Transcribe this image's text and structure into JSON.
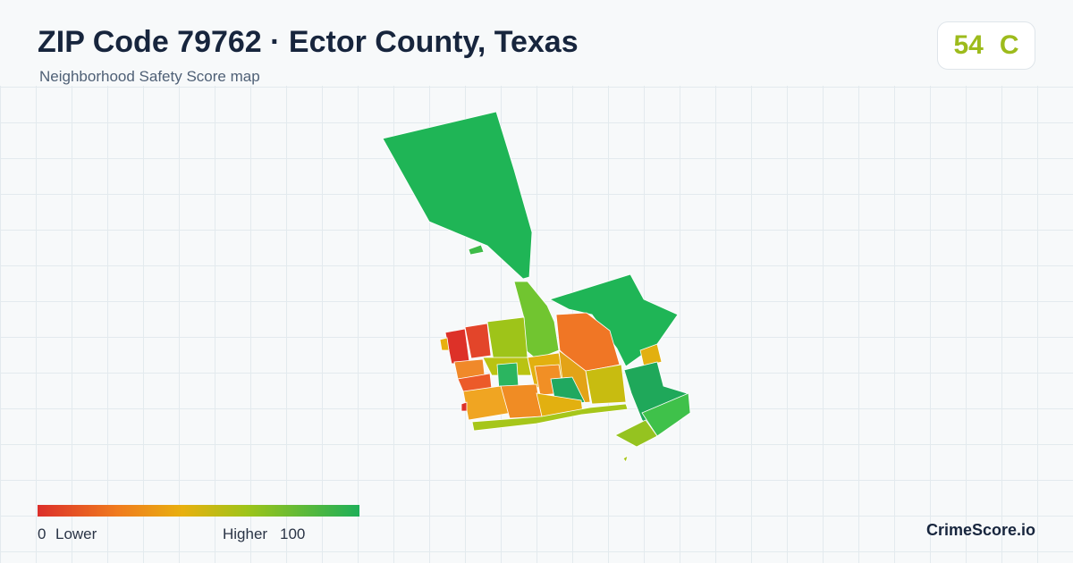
{
  "header": {
    "title": "ZIP Code 79762 · Ector County, Texas",
    "subtitle": "Neighborhood Safety Score map"
  },
  "score": {
    "value": 54,
    "grade": "C"
  },
  "legend": {
    "min": 0,
    "min_label": "Lower",
    "max_label": "Higher",
    "max": 100
  },
  "brand": "CrimeScore.io"
}
